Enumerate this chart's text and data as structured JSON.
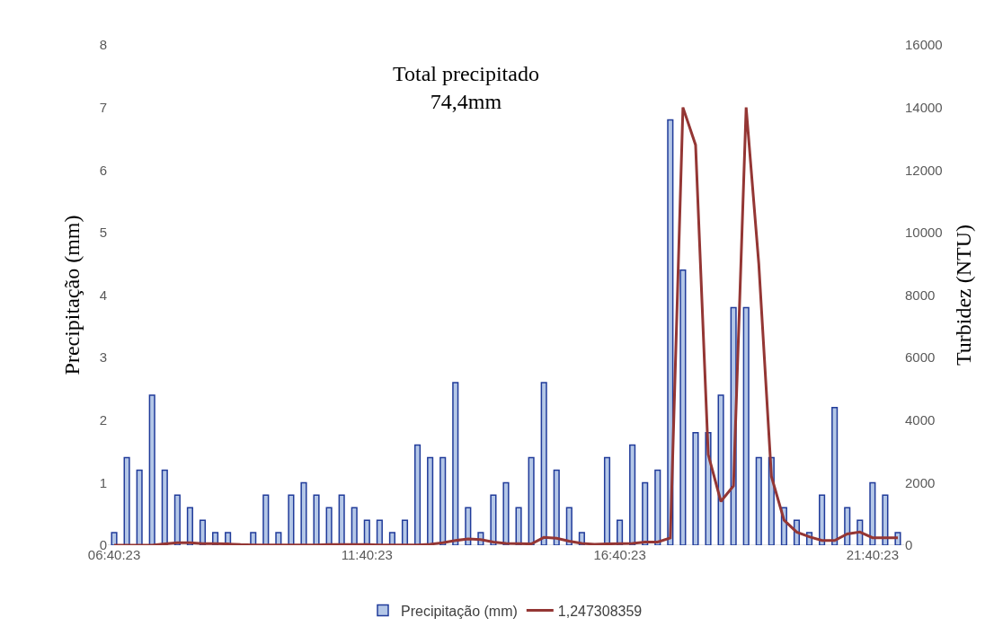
{
  "chart_data": {
    "type": "bar",
    "annotations": [
      "Total precipitado\n74,4mm"
    ],
    "ylabel": "Precipitação (mm)",
    "y2label": "Turbidez (NTU)",
    "categories": [
      "06:40:23",
      null,
      null,
      null,
      null,
      null,
      null,
      null,
      null,
      null,
      null,
      null,
      null,
      null,
      null,
      null,
      null,
      null,
      null,
      null,
      "11:40:23",
      null,
      null,
      null,
      null,
      null,
      null,
      null,
      null,
      null,
      null,
      null,
      null,
      null,
      null,
      null,
      null,
      null,
      null,
      null,
      "16:40:23",
      null,
      null,
      null,
      null,
      null,
      null,
      null,
      null,
      null,
      null,
      null,
      null,
      null,
      null,
      null,
      null,
      null,
      null,
      null,
      "21:40:23",
      null,
      null
    ],
    "series": [
      {
        "name": "Precipitação (mm)",
        "color": "#b4c7e7",
        "values": [
          0.2,
          1.4,
          1.2,
          2.4,
          1.2,
          0.8,
          0.6,
          0.4,
          0.2,
          0.2,
          0,
          0.2,
          0.8,
          0.2,
          0.8,
          1.0,
          0.8,
          0.6,
          0.8,
          0.6,
          0.4,
          0.4,
          0.2,
          0.4,
          1.6,
          1.4,
          1.4,
          2.6,
          0.6,
          0.2,
          0.8,
          1.0,
          0.6,
          1.4,
          2.6,
          1.2,
          0.6,
          0.2,
          0,
          1.4,
          0.4,
          1.6,
          1.0,
          1.2,
          6.8,
          4.4,
          1.8,
          1.8,
          2.4,
          3.8,
          3.8,
          1.4,
          1.4,
          0.6,
          0.4,
          0.2,
          0.8,
          2.2,
          0.6,
          0.4,
          1.0,
          0.8,
          0.2
        ]
      },
      {
        "name": "1,247308359",
        "type": "line",
        "axis": "y2",
        "color": "#943634",
        "values": [
          0,
          0,
          0,
          0,
          40,
          80,
          80,
          50,
          50,
          40,
          20,
          10,
          10,
          10,
          10,
          10,
          10,
          20,
          20,
          20,
          20,
          10,
          10,
          10,
          10,
          30,
          80,
          150,
          200,
          180,
          100,
          60,
          50,
          40,
          250,
          220,
          130,
          60,
          30,
          40,
          50,
          60,
          100,
          100,
          230,
          14000,
          12800,
          2900,
          1400,
          1900,
          14000,
          9000,
          2200,
          800,
          420,
          270,
          150,
          150,
          360,
          420,
          240,
          240,
          240
        ]
      }
    ],
    "ylim": [
      0,
      8
    ],
    "yticks": [
      0,
      1,
      2,
      3,
      4,
      5,
      6,
      7,
      8
    ],
    "y2lim": [
      0,
      16000
    ],
    "y2ticks": [
      0,
      2000,
      4000,
      6000,
      8000,
      10000,
      12000,
      14000,
      16000
    ],
    "grid": false,
    "legend": "bottom"
  }
}
